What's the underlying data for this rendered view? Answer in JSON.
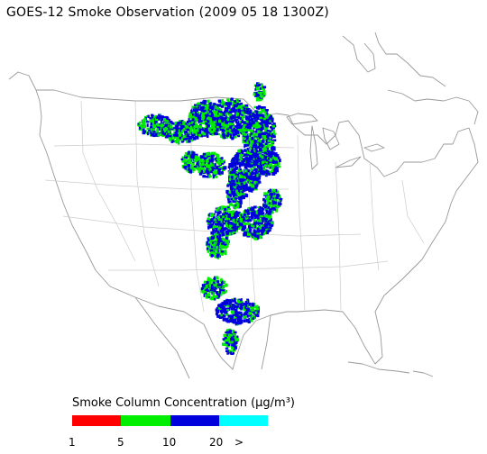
{
  "title": "GOES-12 Smoke Observation (2009 05 18  1300Z)",
  "legend": {
    "title": "Smoke Column Concentration (μg/m³)",
    "bins": [
      {
        "color": "#ff0000"
      },
      {
        "color": "#00ee00"
      },
      {
        "color": "#0000dd"
      },
      {
        "color": "#00ffff"
      }
    ],
    "tick_labels": [
      "1",
      "5",
      "10",
      "20",
      ">"
    ]
  },
  "map": {
    "region": "Contiguous United States",
    "outline_color": "#999999",
    "border_color": "#cccccc"
  }
}
